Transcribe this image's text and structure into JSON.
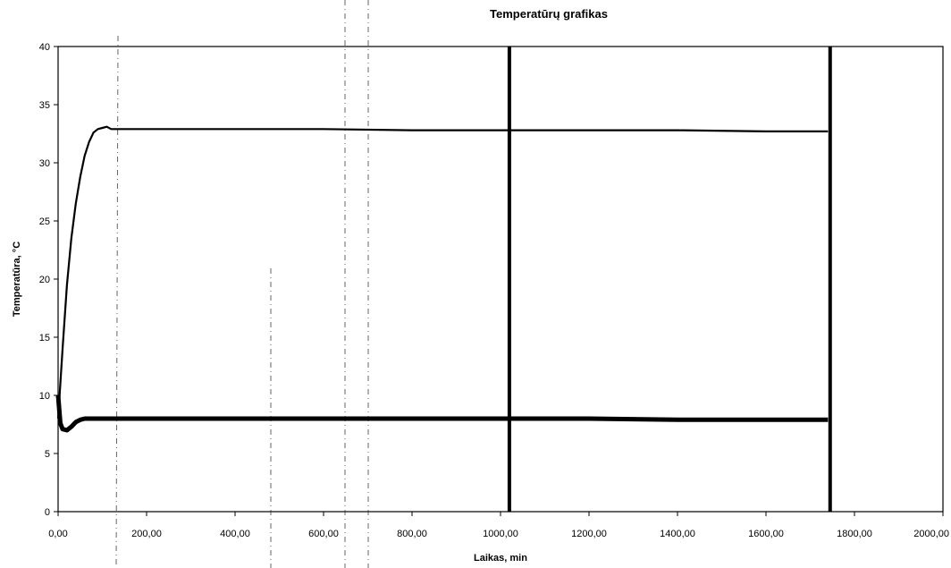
{
  "chart_data": {
    "type": "line",
    "title": "Temperatūrų grafikas",
    "xlabel": "Laikas, min",
    "ylabel": "Temperatūra, °C",
    "xlim": [
      0,
      2000
    ],
    "ylim": [
      0,
      40
    ],
    "x_ticks": [
      "0,00",
      "200,00",
      "400,00",
      "600,00",
      "800,00",
      "1000,00",
      "1200,00",
      "1400,00",
      "1600,00",
      "1800,00",
      "2000,00"
    ],
    "y_ticks": [
      "0",
      "5",
      "10",
      "15",
      "20",
      "25",
      "30",
      "35",
      "40"
    ],
    "grid": false,
    "series": [
      {
        "x": [
          0,
          10,
          20,
          30,
          40,
          50,
          60,
          70,
          80,
          90,
          100,
          110,
          120,
          140,
          200,
          400,
          600,
          800,
          1000,
          1200,
          1400,
          1600,
          1740
        ],
        "y": [
          8,
          14,
          19.5,
          23.5,
          26.5,
          28.8,
          30.6,
          31.8,
          32.6,
          32.9,
          33.0,
          33.1,
          32.9,
          32.9,
          32.9,
          32.9,
          32.9,
          32.8,
          32.8,
          32.8,
          32.8,
          32.7,
          32.7
        ]
      },
      {
        "x": [
          0,
          5,
          10,
          20,
          30,
          40,
          50,
          60,
          80,
          100,
          200,
          400,
          600,
          800,
          1000,
          1200,
          1400,
          1600,
          1740
        ],
        "y": [
          10,
          7.6,
          7.1,
          7.0,
          7.3,
          7.7,
          7.9,
          8.0,
          8.0,
          8.0,
          8.0,
          8.0,
          8.0,
          8.0,
          8.0,
          8.0,
          7.9,
          7.9,
          7.9
        ]
      }
    ],
    "markers": [
      {
        "x": 1020
      },
      {
        "x": 1745
      }
    ]
  }
}
